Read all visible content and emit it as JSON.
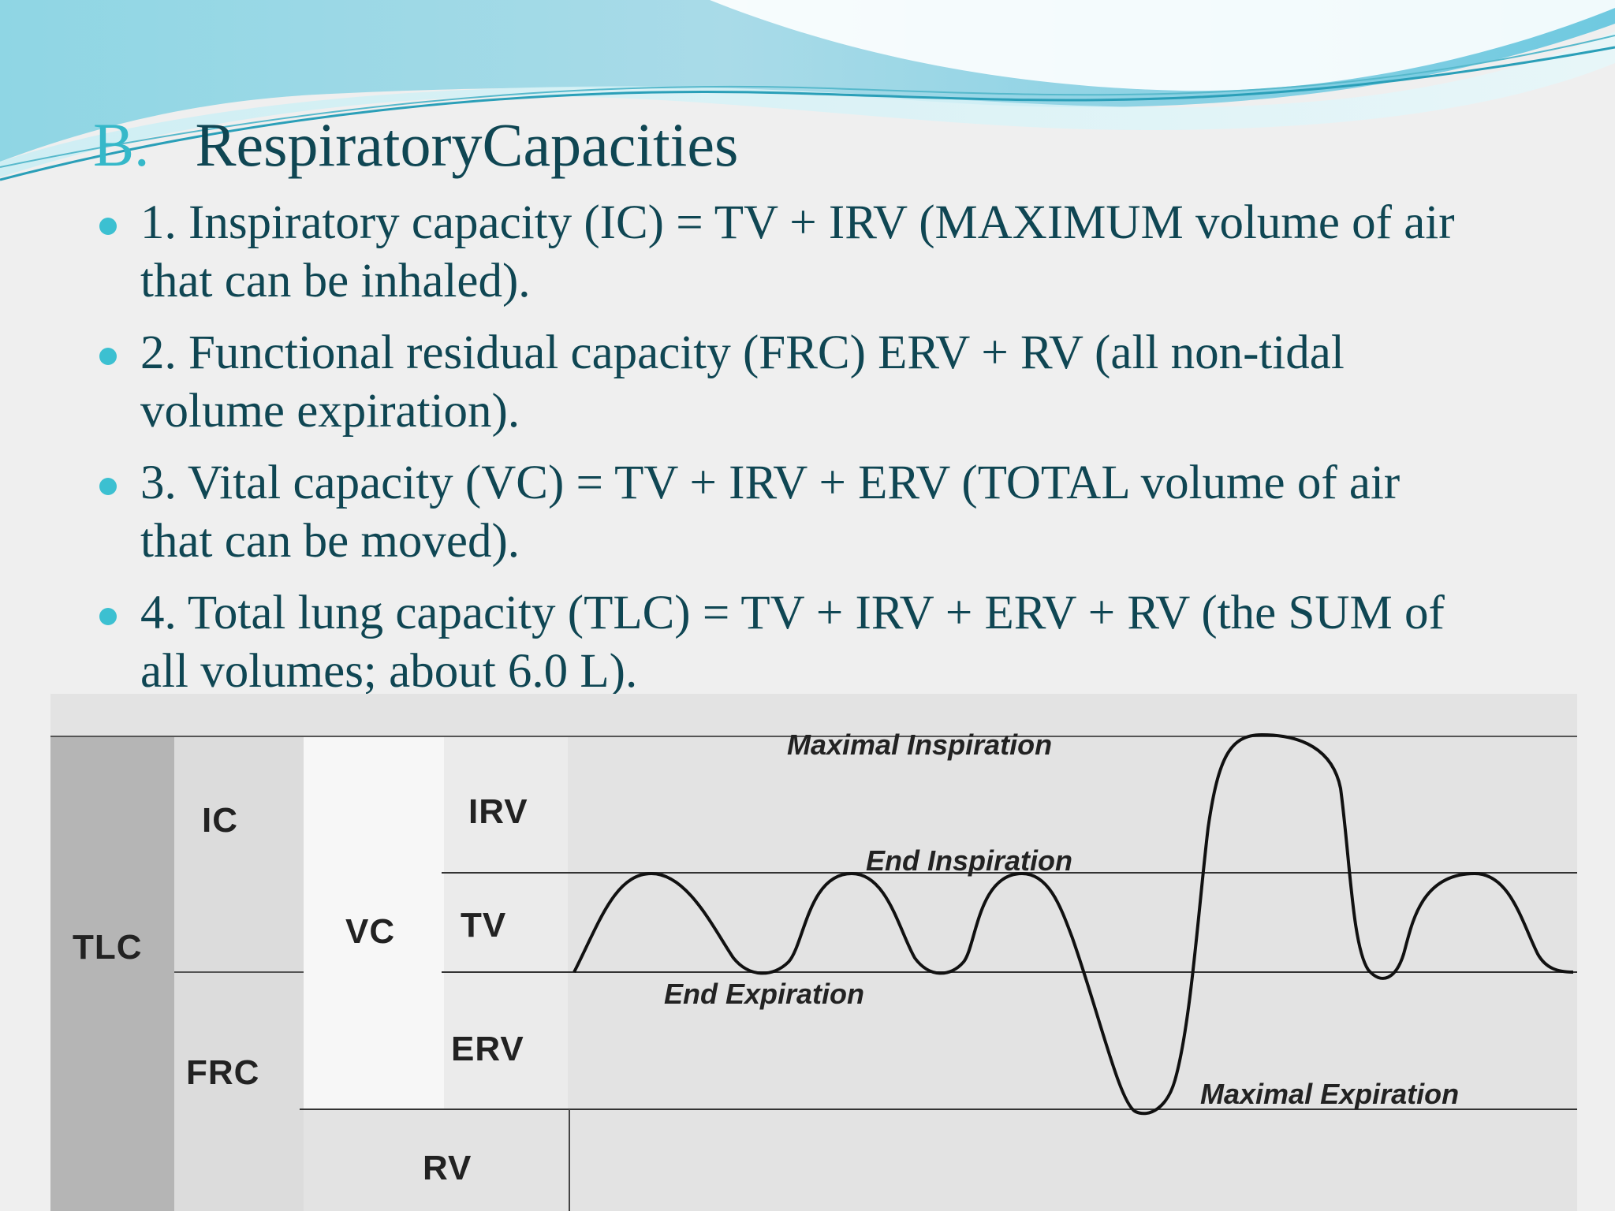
{
  "heading": {
    "letter": "B.",
    "title": "RespiratoryCapacities"
  },
  "bullets": [
    {
      "line1": "1. Inspiratory capacity (IC) = TV + IRV (MAXIMUM volume of air",
      "line2": "that can be inhaled)."
    },
    {
      "line1": "2. Functional residual capacity (FRC)   ERV + RV (all non-tidal",
      "line2": "volume expiration)."
    },
    {
      "line1": "3. Vital capacity (VC) = TV + IRV + ERV (TOTAL volume of air",
      "line2": "that can be moved)."
    },
    {
      "line1": "4. Total lung capacity (TLC) = TV + IRV + ERV + RV (the SUM of",
      "line2": "all volumes; about 6.0 L)."
    }
  ],
  "diagram": {
    "capacities": {
      "tlc": "TLC",
      "ic": "IC",
      "frc": "FRC",
      "vc": "VC"
    },
    "volumes": {
      "irv": "IRV",
      "tv": "TV",
      "erv": "ERV",
      "rv": "RV"
    },
    "annotations": {
      "maximal_inspiration": "Maximal Inspiration",
      "end_inspiration": "End Inspiration",
      "end_expiration": "End Expiration",
      "maximal_expiration": "Maximal Expiration"
    }
  },
  "colors": {
    "title_text": "#0f4653",
    "accent": "#35b8c9",
    "bullet_dot": "#3cc0d1",
    "slide_bg": "#efefef",
    "diagram_bg": "#e3e3e3",
    "tlc_column": "#b5b5b5",
    "vc_column": "#f7f7f7"
  }
}
